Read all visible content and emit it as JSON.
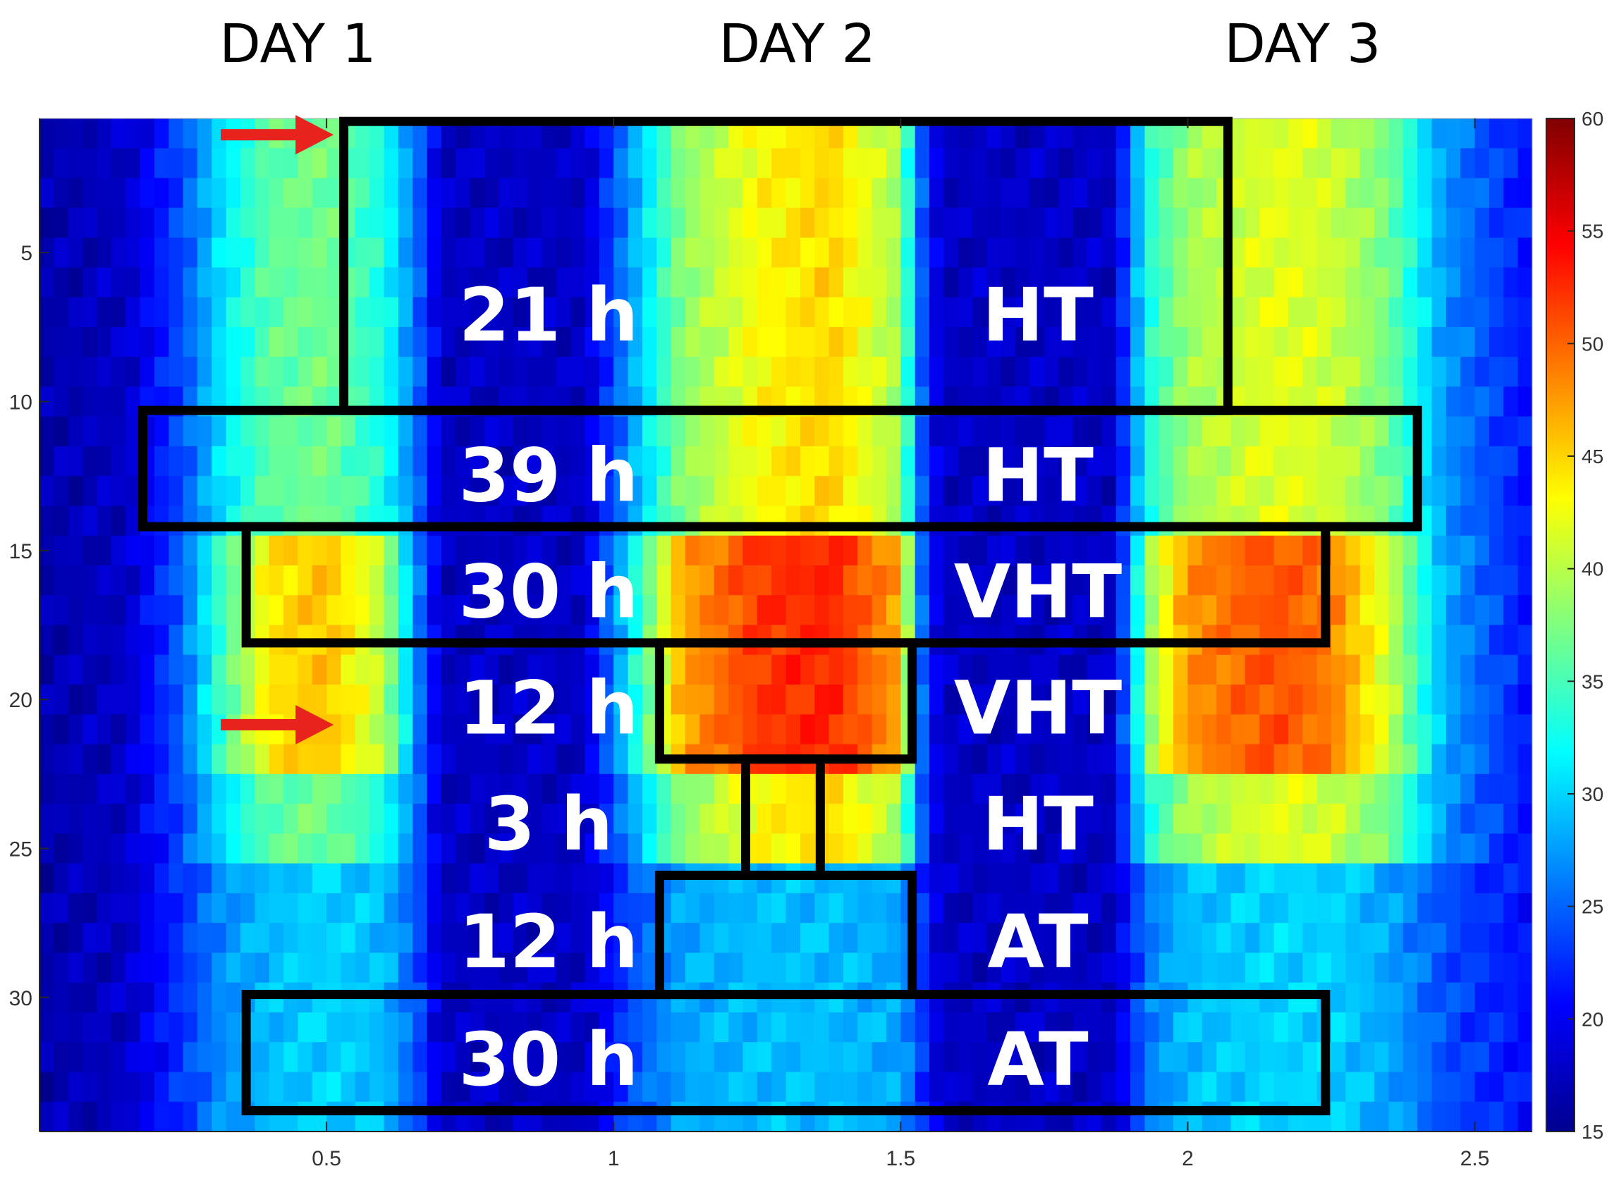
{
  "chart_data": {
    "type": "heatmap",
    "title": "",
    "colormap": "jet",
    "day_labels": [
      "DAY 1",
      "DAY 2",
      "DAY 3"
    ],
    "day_centers": [
      0.45,
      1.32,
      2.2
    ],
    "xlim": [
      0,
      2.6
    ],
    "x_ticks": [
      0.5,
      1,
      1.5,
      2,
      2.5
    ],
    "x_tick_labels": [
      "0.5",
      "1",
      "1.5",
      "2",
      "2.5"
    ],
    "ylim": [
      0.5,
      34.5
    ],
    "y_ticks": [
      5,
      10,
      15,
      20,
      25,
      30
    ],
    "y_tick_labels": [
      "5",
      "10",
      "15",
      "20",
      "25",
      "30"
    ],
    "colorbar": {
      "min": 15,
      "max": 60,
      "ticks": [
        15,
        20,
        25,
        30,
        35,
        40,
        45,
        50,
        55,
        60
      ],
      "tick_labels": [
        "15",
        "20",
        "25",
        "30",
        "35",
        "40",
        "45",
        "50",
        "55",
        "60"
      ]
    },
    "value_profile_by_x": {
      "x": [
        0,
        0.15,
        0.25,
        0.32,
        0.4,
        0.5,
        0.6,
        0.66,
        0.7,
        0.95,
        1.05,
        1.12,
        1.25,
        1.38,
        1.5,
        1.53,
        1.57,
        1.87,
        1.93,
        2.0,
        2.15,
        2.25,
        2.35,
        2.45,
        2.6
      ],
      "at": [
        17,
        18,
        23,
        27,
        29,
        30,
        29,
        24,
        18,
        18,
        25,
        28,
        29,
        29,
        28,
        24,
        18,
        18,
        26,
        29,
        30,
        30,
        28,
        24,
        21
      ],
      "ht": [
        17,
        18,
        24,
        31,
        36,
        37,
        33,
        25,
        18,
        18,
        30,
        38,
        43,
        45,
        39,
        26,
        18,
        18,
        33,
        39,
        42,
        41,
        37,
        27,
        21
      ],
      "vht": [
        17,
        18,
        25,
        35,
        44,
        46,
        40,
        26,
        18,
        18,
        35,
        47,
        52,
        53,
        47,
        27,
        18,
        18,
        38,
        48,
        51,
        49,
        41,
        28,
        21
      ]
    },
    "row_intensity": {
      "rows_from": [
        1,
        11,
        15,
        19,
        23,
        26,
        29,
        32
      ],
      "rows_to": [
        10,
        14,
        18,
        22,
        25,
        28,
        31,
        34
      ],
      "levels": [
        "ht",
        "ht",
        "vht",
        "vht",
        "ht",
        "at",
        "at",
        "at"
      ]
    },
    "highlight_boxes": [
      {
        "duration": "21 h",
        "condition": "HT",
        "x_from": 0.53,
        "x_to": 2.07,
        "y_from": 0.6,
        "y_to": 10.3
      },
      {
        "duration": "39 h",
        "condition": "HT",
        "x_from": 0.18,
        "x_to": 2.4,
        "y_from": 10.3,
        "y_to": 14.2
      },
      {
        "duration": "30 h",
        "condition": "VHT",
        "x_from": 0.36,
        "x_to": 2.24,
        "y_from": 14.2,
        "y_to": 18.1
      },
      {
        "duration": "12 h",
        "condition": "VHT",
        "x_from": 1.08,
        "x_to": 1.52,
        "y_from": 18.1,
        "y_to": 22.0
      },
      {
        "duration": "3 h",
        "condition": "HT",
        "x_from": 1.23,
        "x_to": 1.36,
        "y_from": 22.0,
        "y_to": 25.9
      },
      {
        "duration": "12 h",
        "condition": "AT",
        "x_from": 1.08,
        "x_to": 1.52,
        "y_from": 25.9,
        "y_to": 29.9
      },
      {
        "duration": "30 h",
        "condition": "AT",
        "x_from": 0.36,
        "x_to": 2.24,
        "y_from": 29.9,
        "y_to": 33.8
      }
    ],
    "arrows": [
      {
        "row": 1,
        "points_to_x": 0.5
      },
      {
        "row": 20.8,
        "points_to_x": 0.5
      }
    ],
    "arrow_color": "#e8231d",
    "box_color": "#000000"
  }
}
